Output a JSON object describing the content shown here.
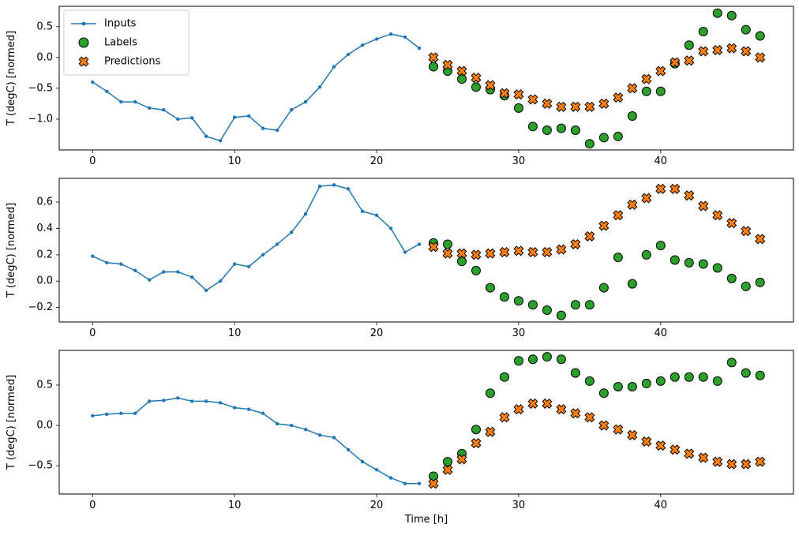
{
  "figure": {
    "xlabel": "Time [h]",
    "ylabel": "T (degC) [normed]"
  },
  "legend": {
    "items": [
      {
        "label": "Inputs"
      },
      {
        "label": "Labels"
      },
      {
        "label": "Predictions"
      }
    ]
  },
  "colors": {
    "inputs": "#1f77b4",
    "labels": "#2ca02c",
    "predictions": "#ff7f0e",
    "marker_edge": "#000000",
    "legend_border": "#cccccc"
  },
  "chart_data": [
    {
      "type": "line",
      "title": "",
      "xlabel": "",
      "ylabel": "T (degC) [normed]",
      "xlim": [
        -2.35,
        49.35
      ],
      "ylim": [
        -1.5,
        0.83
      ],
      "xticks": [
        0,
        10,
        20,
        30,
        40
      ],
      "yticks": [
        0.5,
        0.0,
        -0.5,
        -1.0
      ],
      "grid": false,
      "legend_position": "upper left",
      "series": [
        {
          "name": "Inputs",
          "type": "line",
          "color": "#1f77b4",
          "x": [
            0,
            1,
            2,
            3,
            4,
            5,
            6,
            7,
            8,
            9,
            10,
            11,
            12,
            13,
            14,
            15,
            16,
            17,
            18,
            19,
            20,
            21,
            22,
            23
          ],
          "y": [
            -0.4,
            -0.55,
            -0.72,
            -0.72,
            -0.82,
            -0.85,
            -1.0,
            -0.98,
            -1.28,
            -1.35,
            -0.97,
            -0.95,
            -1.15,
            -1.18,
            -0.85,
            -0.72,
            -0.48,
            -0.15,
            0.05,
            0.2,
            0.3,
            0.38,
            0.33,
            0.15
          ]
        },
        {
          "name": "Labels",
          "type": "scatter-circle",
          "color": "#2ca02c",
          "x": [
            24,
            25,
            26,
            27,
            28,
            29,
            30,
            31,
            32,
            33,
            34,
            35,
            36,
            37,
            38,
            39,
            40,
            41,
            42,
            43,
            44,
            45,
            46,
            47
          ],
          "y": [
            -0.15,
            -0.22,
            -0.35,
            -0.48,
            -0.52,
            -0.62,
            -0.82,
            -1.12,
            -1.18,
            -1.15,
            -1.18,
            -1.4,
            -1.3,
            -1.28,
            -0.95,
            -0.55,
            -0.55,
            -0.1,
            0.2,
            0.42,
            0.72,
            0.68,
            0.45,
            0.35
          ]
        },
        {
          "name": "Predictions",
          "type": "scatter-x",
          "color": "#ff7f0e",
          "x": [
            24,
            25,
            26,
            27,
            28,
            29,
            30,
            31,
            32,
            33,
            34,
            35,
            36,
            37,
            38,
            39,
            40,
            41,
            42,
            43,
            44,
            45,
            46,
            47
          ],
          "y": [
            0.0,
            -0.12,
            -0.22,
            -0.33,
            -0.45,
            -0.58,
            -0.6,
            -0.68,
            -0.75,
            -0.8,
            -0.8,
            -0.8,
            -0.75,
            -0.65,
            -0.5,
            -0.35,
            -0.22,
            -0.08,
            -0.05,
            0.1,
            0.12,
            0.15,
            0.1,
            0.0
          ]
        }
      ]
    },
    {
      "type": "line",
      "title": "",
      "xlabel": "",
      "ylabel": "T (degC) [normed]",
      "xlim": [
        -2.35,
        49.35
      ],
      "ylim": [
        -0.31,
        0.78
      ],
      "xticks": [
        0,
        10,
        20,
        30,
        40
      ],
      "yticks": [
        0.6,
        0.4,
        0.2,
        0.0,
        -0.2
      ],
      "grid": false,
      "series": [
        {
          "name": "Inputs",
          "type": "line",
          "color": "#1f77b4",
          "x": [
            0,
            1,
            2,
            3,
            4,
            5,
            6,
            7,
            8,
            9,
            10,
            11,
            12,
            13,
            14,
            15,
            16,
            17,
            18,
            19,
            20,
            21,
            22,
            23
          ],
          "y": [
            0.19,
            0.14,
            0.13,
            0.08,
            0.01,
            0.07,
            0.07,
            0.03,
            -0.07,
            0.0,
            0.13,
            0.11,
            0.2,
            0.28,
            0.37,
            0.51,
            0.72,
            0.73,
            0.7,
            0.53,
            0.5,
            0.4,
            0.22,
            0.28
          ]
        },
        {
          "name": "Labels",
          "type": "scatter-circle",
          "color": "#2ca02c",
          "x": [
            24,
            25,
            26,
            27,
            28,
            29,
            30,
            31,
            32,
            33,
            34,
            35,
            36,
            37,
            38,
            39,
            40,
            41,
            42,
            43,
            44,
            45,
            46,
            47
          ],
          "y": [
            0.29,
            0.28,
            0.15,
            0.08,
            -0.05,
            -0.12,
            -0.15,
            -0.18,
            -0.22,
            -0.26,
            -0.18,
            -0.18,
            -0.05,
            0.18,
            -0.02,
            0.2,
            0.27,
            0.16,
            0.14,
            0.13,
            0.1,
            0.02,
            -0.04,
            -0.01
          ]
        },
        {
          "name": "Predictions",
          "type": "scatter-x",
          "color": "#ff7f0e",
          "x": [
            24,
            25,
            26,
            27,
            28,
            29,
            30,
            31,
            32,
            33,
            34,
            35,
            36,
            37,
            38,
            39,
            40,
            41,
            42,
            43,
            44,
            45,
            46,
            47
          ],
          "y": [
            0.26,
            0.21,
            0.21,
            0.2,
            0.21,
            0.22,
            0.23,
            0.22,
            0.22,
            0.24,
            0.28,
            0.34,
            0.42,
            0.5,
            0.58,
            0.63,
            0.7,
            0.7,
            0.65,
            0.57,
            0.5,
            0.44,
            0.38,
            0.32
          ]
        }
      ]
    },
    {
      "type": "line",
      "title": "",
      "xlabel": "Time [h]",
      "ylabel": "T (degC) [normed]",
      "xlim": [
        -2.35,
        49.35
      ],
      "ylim": [
        -0.85,
        0.93
      ],
      "xticks": [
        0,
        10,
        20,
        30,
        40
      ],
      "yticks": [
        0.5,
        0.0,
        -0.5
      ],
      "grid": false,
      "series": [
        {
          "name": "Inputs",
          "type": "line",
          "color": "#1f77b4",
          "x": [
            0,
            1,
            2,
            3,
            4,
            5,
            6,
            7,
            8,
            9,
            10,
            11,
            12,
            13,
            14,
            15,
            16,
            17,
            18,
            19,
            20,
            21,
            22,
            23
          ],
          "y": [
            0.12,
            0.14,
            0.15,
            0.15,
            0.3,
            0.31,
            0.34,
            0.3,
            0.3,
            0.28,
            0.22,
            0.2,
            0.15,
            0.02,
            0.0,
            -0.05,
            -0.12,
            -0.15,
            -0.3,
            -0.45,
            -0.55,
            -0.65,
            -0.72,
            -0.72
          ]
        },
        {
          "name": "Labels",
          "type": "scatter-circle",
          "color": "#2ca02c",
          "x": [
            24,
            25,
            26,
            27,
            28,
            29,
            30,
            31,
            32,
            33,
            34,
            35,
            36,
            37,
            38,
            39,
            40,
            41,
            42,
            43,
            44,
            45,
            46,
            47
          ],
          "y": [
            -0.63,
            -0.45,
            -0.35,
            -0.05,
            0.4,
            0.6,
            0.8,
            0.82,
            0.85,
            0.82,
            0.65,
            0.55,
            0.4,
            0.48,
            0.48,
            0.52,
            0.55,
            0.6,
            0.6,
            0.6,
            0.55,
            0.78,
            0.65,
            0.62
          ]
        },
        {
          "name": "Predictions",
          "type": "scatter-x",
          "color": "#ff7f0e",
          "x": [
            24,
            25,
            26,
            27,
            28,
            29,
            30,
            31,
            32,
            33,
            34,
            35,
            36,
            37,
            38,
            39,
            40,
            41,
            42,
            43,
            44,
            45,
            46,
            47
          ],
          "y": [
            -0.72,
            -0.55,
            -0.42,
            -0.22,
            -0.08,
            0.1,
            0.2,
            0.27,
            0.27,
            0.2,
            0.15,
            0.1,
            0.0,
            -0.05,
            -0.12,
            -0.2,
            -0.25,
            -0.3,
            -0.35,
            -0.4,
            -0.45,
            -0.48,
            -0.48,
            -0.45
          ]
        }
      ]
    }
  ]
}
